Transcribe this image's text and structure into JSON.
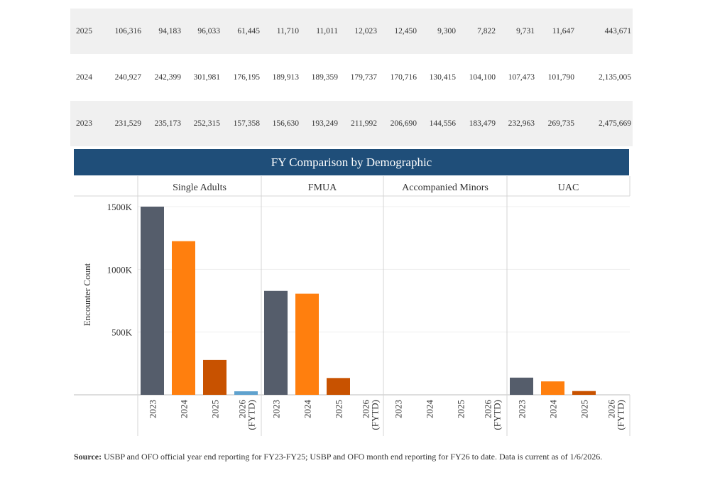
{
  "table": {
    "rows": [
      {
        "year": "2025",
        "values": [
          "106,316",
          "94,183",
          "96,033",
          "61,445",
          "11,710",
          "11,011",
          "12,023",
          "12,450",
          "9,300",
          "7,822",
          "9,731",
          "11,647",
          "443,671"
        ]
      },
      {
        "year": "2024",
        "values": [
          "240,927",
          "242,399",
          "301,981",
          "176,195",
          "189,913",
          "189,359",
          "179,737",
          "170,716",
          "130,415",
          "104,100",
          "107,473",
          "101,790",
          "2,135,005"
        ]
      },
      {
        "year": "2023",
        "values": [
          "231,529",
          "235,173",
          "252,315",
          "157,358",
          "156,630",
          "193,249",
          "211,992",
          "206,690",
          "144,556",
          "183,479",
          "232,963",
          "269,735",
          "2,475,669"
        ]
      }
    ]
  },
  "chart_data": {
    "type": "bar",
    "title": "FY Comparison by Demographic",
    "ylabel": "Encounter Count",
    "ylim": [
      0,
      1500000
    ],
    "yticks": [
      {
        "value": 500000,
        "label": "500K"
      },
      {
        "value": 1000000,
        "label": "1000K"
      },
      {
        "value": 1500000,
        "label": "1500K"
      }
    ],
    "categories": [
      "2023",
      "2024",
      "2025",
      "2026 (FYTD)"
    ],
    "category_colors": [
      "#555d6b",
      "#ff7f0e",
      "#c85200",
      "#5fa2ce"
    ],
    "panels": [
      {
        "name": "Single Adults",
        "values": [
          1500000,
          1225000,
          278000,
          28000
        ]
      },
      {
        "name": "FMUA",
        "values": [
          828000,
          806000,
          134000,
          0
        ]
      },
      {
        "name": "Accompanied Minors",
        "values": [
          0,
          0,
          0,
          0
        ]
      },
      {
        "name": "UAC",
        "values": [
          137000,
          107000,
          30000,
          0
        ]
      }
    ],
    "grid": true
  },
  "source": {
    "label": "Source:",
    "text": " USBP and OFO official year end reporting for FY23-FY25; USBP and OFO month end reporting for FY26 to date. Data is current as of 1/6/2026."
  }
}
